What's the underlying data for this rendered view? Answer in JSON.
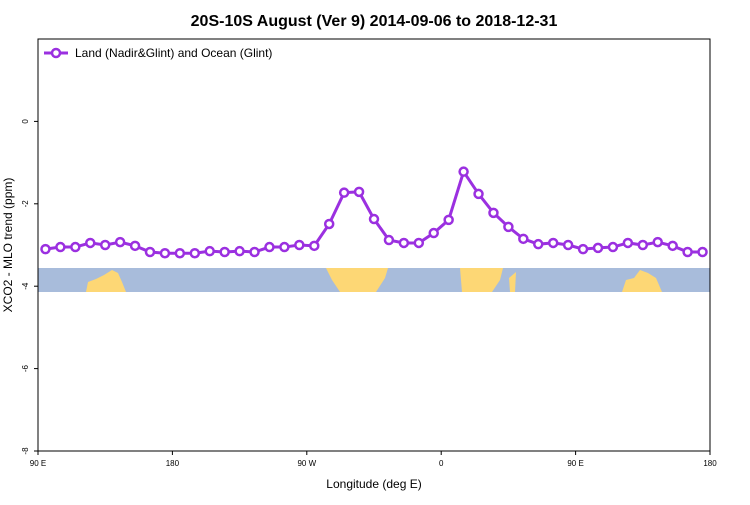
{
  "chart_data": {
    "type": "line",
    "title": "20S-10S August (Ver 9)   2014-09-06 to 2018-12-31",
    "x_label": "Longitude (deg E)",
    "y_label": "XCO2 - MLO trend (ppm)",
    "x": [
      95,
      105,
      115,
      125,
      135,
      145,
      155,
      165,
      175,
      185,
      195,
      205,
      215,
      225,
      235,
      245,
      255,
      265,
      275,
      285,
      295,
      305,
      315,
      325,
      335,
      345,
      355,
      365,
      375,
      385,
      395,
      405,
      415,
      425,
      435,
      445,
      455,
      465,
      475,
      485,
      495,
      505,
      515,
      525,
      535
    ],
    "series": [
      {
        "name": "Land (Nadir&Glint) and Ocean (Glint)",
        "color": "#9b30e0",
        "values": [
          -3.1,
          -3.05,
          -3.05,
          -2.95,
          -3.0,
          -2.93,
          -3.02,
          -3.17,
          -3.2,
          -3.2,
          -3.2,
          -3.15,
          -3.17,
          -3.15,
          -3.17,
          -3.05,
          -3.05,
          -3.0,
          -3.02,
          -2.49,
          -1.73,
          -1.71,
          -2.37,
          -2.88,
          -2.95,
          -2.95,
          -2.71,
          -2.39,
          -1.22,
          -1.76,
          -2.22,
          -2.56,
          -2.85,
          -2.98,
          -2.95,
          -3.0,
          -3.1,
          -3.07,
          -3.05,
          -2.95,
          -3.0,
          -2.93,
          -3.02,
          -3.17,
          -3.17
        ]
      }
    ],
    "xlim": [
      90,
      540
    ],
    "xticks": [
      {
        "value": 90,
        "label": "90 E"
      },
      180,
      {
        "value": 270,
        "label": "90 W"
      },
      {
        "value": 360,
        "label": "0"
      },
      {
        "value": 450,
        "label": "90 E"
      },
      {
        "value": 540,
        "label": "180"
      }
    ],
    "ylim": [
      -8,
      2
    ],
    "yticks": [
      -8,
      -6,
      -4,
      -2,
      0
    ],
    "legend": "top-left"
  }
}
